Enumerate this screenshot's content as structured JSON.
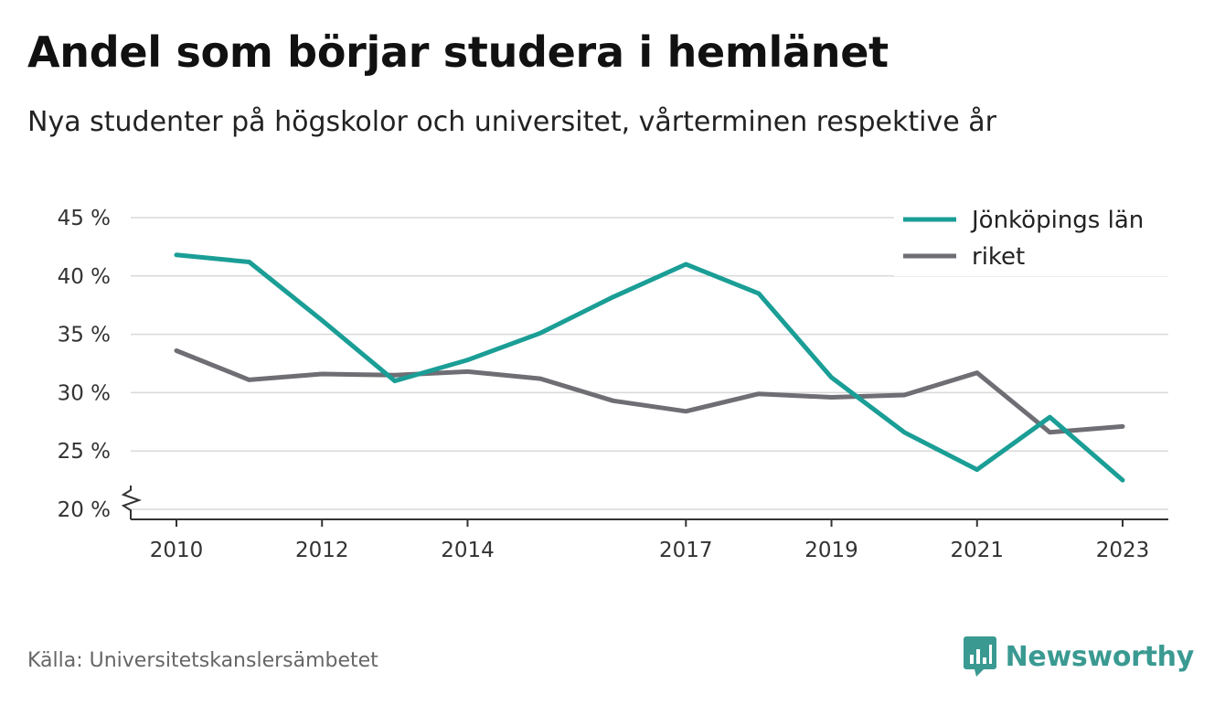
{
  "header": {
    "title": "Andel som börjar studera i hemlänet",
    "subtitle": "Nya studenter på högskolor och universitet, vårterminen respektive år"
  },
  "footer": {
    "source": "Källa: Universitetskanslersämbetet",
    "brand": "Newsworthy",
    "brand_icon": "bar-chart-speech-icon",
    "brand_color": "#3a9a92"
  },
  "chart_data": {
    "type": "line",
    "title": "Andel som börjar studera i hemlänet",
    "subtitle": "Nya studenter på högskolor och universitet, vårterminen respektive år",
    "x": [
      2010,
      2011,
      2012,
      2013,
      2014,
      2015,
      2016,
      2017,
      2018,
      2019,
      2020,
      2021,
      2022,
      2023
    ],
    "x_ticks": [
      2010,
      2012,
      2014,
      2017,
      2019,
      2021,
      2023
    ],
    "y_ticks": [
      20,
      25,
      30,
      35,
      40,
      45
    ],
    "y_tick_suffix": " %",
    "ylim": [
      20,
      45
    ],
    "y_axis_break": true,
    "grid": true,
    "legend_position": "top-right",
    "series": [
      {
        "name": "Jönköpings län",
        "color": "#1a9e96",
        "values": [
          41.8,
          41.2,
          36.2,
          31.0,
          32.8,
          35.1,
          38.2,
          41.0,
          38.5,
          31.3,
          26.6,
          23.4,
          27.9,
          22.5
        ]
      },
      {
        "name": "riket",
        "color": "#6e6e74",
        "values": [
          33.6,
          31.1,
          31.6,
          31.5,
          31.8,
          31.2,
          29.3,
          28.4,
          29.9,
          29.6,
          29.8,
          31.7,
          26.6,
          27.1
        ]
      }
    ]
  }
}
